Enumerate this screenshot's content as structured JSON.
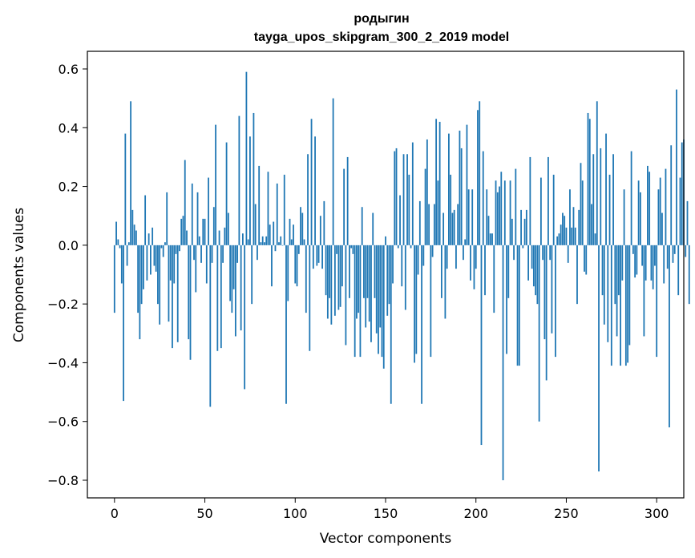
{
  "chart_data": {
    "type": "bar",
    "title": "родыгин",
    "subtitle": "tayga_upos_skipgram_300_2_2019 model",
    "xlabel": "Vector components",
    "ylabel": "Components values",
    "xlim": [
      -15,
      315
    ],
    "ylim": [
      -0.86,
      0.66
    ],
    "xticks": [
      0,
      50,
      100,
      150,
      200,
      250,
      300
    ],
    "yticks": [
      0.6,
      0.4,
      0.2,
      0.0,
      -0.2,
      -0.4,
      -0.6,
      -0.8
    ],
    "ytick_labels": [
      "0.6",
      "0.4",
      "0.2",
      "0.0",
      "−0.2",
      "−0.4",
      "−0.6",
      "−0.8"
    ],
    "grid": false,
    "color": "#1f77b4",
    "values": [
      -0.23,
      0.08,
      0.02,
      -0.01,
      -0.13,
      -0.53,
      0.38,
      -0.07,
      0.01,
      0.49,
      0.12,
      0.07,
      0.05,
      -0.23,
      -0.32,
      -0.2,
      -0.15,
      0.17,
      -0.12,
      0.04,
      -0.1,
      0.06,
      -0.07,
      -0.09,
      -0.2,
      -0.27,
      -0.01,
      -0.04,
      0.01,
      0.18,
      -0.26,
      -0.12,
      -0.35,
      -0.13,
      -0.03,
      -0.33,
      -0.02,
      0.09,
      0.1,
      0.29,
      0.05,
      -0.32,
      -0.39,
      0.21,
      -0.05,
      -0.16,
      0.18,
      0.03,
      -0.06,
      0.09,
      0.09,
      -0.13,
      0.23,
      -0.55,
      -0.06,
      0.13,
      0.41,
      -0.36,
      0.05,
      -0.35,
      -0.06,
      0.06,
      0.35,
      0.11,
      -0.19,
      -0.23,
      -0.15,
      -0.31,
      -0.06,
      0.44,
      -0.29,
      0.04,
      -0.49,
      0.59,
      0.02,
      0.37,
      -0.2,
      0.45,
      0.14,
      -0.05,
      0.27,
      0.01,
      0.03,
      0.01,
      0.03,
      0.25,
      0.07,
      -0.14,
      0.08,
      -0.02,
      0.21,
      0.01,
      0.03,
      0.0,
      0.24,
      -0.54,
      -0.19,
      0.09,
      0.02,
      0.07,
      -0.13,
      -0.14,
      -0.03,
      0.13,
      0.11,
      0.02,
      -0.23,
      0.31,
      -0.36,
      0.43,
      -0.08,
      0.37,
      -0.07,
      -0.06,
      0.1,
      -0.08,
      0.15,
      -0.17,
      -0.25,
      -0.18,
      -0.27,
      0.5,
      -0.24,
      -0.03,
      -0.22,
      -0.21,
      -0.14,
      0.26,
      -0.34,
      0.3,
      -0.18,
      -0.01,
      -0.03,
      -0.38,
      -0.25,
      -0.23,
      -0.38,
      0.13,
      -0.18,
      -0.28,
      -0.18,
      -0.26,
      -0.33,
      0.11,
      -0.18,
      -0.3,
      -0.37,
      -0.28,
      -0.38,
      -0.42,
      0.03,
      -0.24,
      -0.2,
      -0.54,
      -0.13,
      0.32,
      0.33,
      -0.01,
      0.17,
      -0.14,
      0.31,
      -0.22,
      0.31,
      0.24,
      -0.01,
      0.35,
      -0.4,
      -0.37,
      -0.1,
      0.15,
      -0.54,
      -0.07,
      0.26,
      0.36,
      0.14,
      -0.38,
      -0.04,
      0.14,
      0.43,
      0.22,
      0.42,
      -0.18,
      0.11,
      -0.25,
      -0.08,
      0.38,
      0.24,
      0.11,
      0.12,
      -0.08,
      0.14,
      0.39,
      0.33,
      -0.05,
      0.02,
      0.41,
      0.19,
      -0.12,
      0.19,
      -0.15,
      -0.08,
      0.46,
      0.49,
      -0.68,
      0.32,
      -0.17,
      0.19,
      0.1,
      0.04,
      0.04,
      -0.23,
      0.22,
      0.18,
      0.2,
      0.25,
      -0.8,
      0.22,
      -0.37,
      -0.18,
      0.22,
      0.09,
      -0.05,
      0.26,
      -0.41,
      -0.41,
      0.12,
      -0.01,
      0.09,
      0.12,
      -0.12,
      0.3,
      -0.08,
      -0.14,
      -0.17,
      -0.2,
      -0.6,
      0.23,
      -0.05,
      -0.32,
      -0.46,
      0.3,
      -0.05,
      -0.3,
      0.24,
      -0.38,
      0.03,
      0.04,
      0.07,
      0.11,
      0.1,
      0.06,
      -0.06,
      0.19,
      0.06,
      0.13,
      0.06,
      -0.2,
      0.12,
      0.28,
      0.22,
      -0.09,
      -0.1,
      0.45,
      0.43,
      0.14,
      0.31,
      0.04,
      0.49,
      -0.77,
      0.33,
      -0.17,
      -0.27,
      0.38,
      -0.33,
      0.24,
      -0.41,
      0.31,
      -0.2,
      -0.31,
      -0.17,
      -0.41,
      -0.12,
      0.19,
      -0.41,
      -0.4,
      -0.34,
      0.32,
      -0.03,
      -0.11,
      -0.1,
      0.22,
      0.18,
      -0.07,
      -0.31,
      -0.12,
      0.27,
      0.25,
      -0.12,
      -0.15,
      -0.07,
      -0.38,
      0.19,
      0.23,
      0.11,
      -0.13,
      0.26,
      -0.08,
      -0.62,
      0.34,
      -0.06,
      -0.03,
      0.53,
      -0.17,
      0.23,
      0.35,
      0.36,
      -0.04,
      0.15,
      -0.2
    ]
  }
}
